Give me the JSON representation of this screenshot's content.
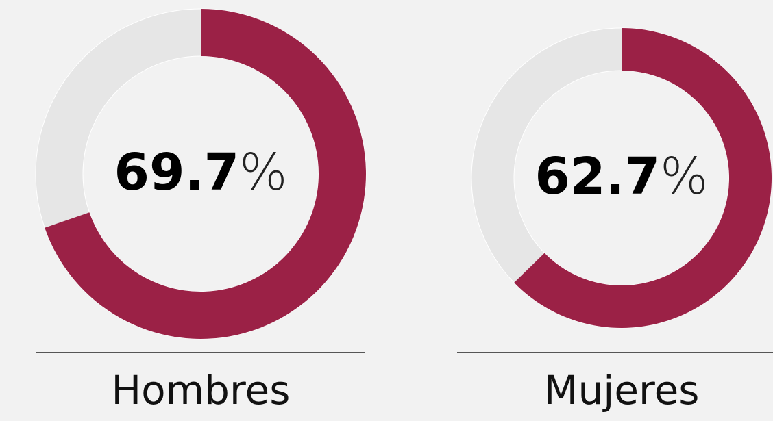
{
  "chart_data": [
    {
      "type": "donut",
      "title": "Hombres",
      "values": [
        69.7
      ],
      "value_labels": [
        "69.7%"
      ],
      "color": "#9b2146"
    },
    {
      "type": "donut",
      "title": "Mujeres",
      "values": [
        62.7
      ],
      "value_labels": [
        "62.7%"
      ],
      "color": "#9b2146"
    }
  ]
}
